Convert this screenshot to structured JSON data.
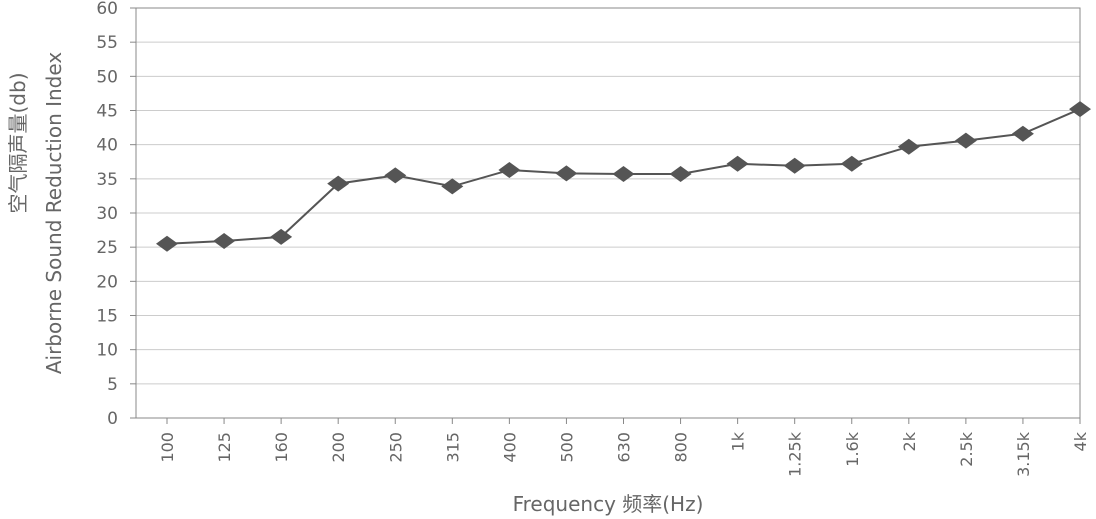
{
  "chart_data": {
    "type": "line",
    "categories": [
      "100",
      "125",
      "160",
      "200",
      "250",
      "315",
      "400",
      "500",
      "630",
      "800",
      "1k",
      "1.25k",
      "1.6k",
      "2k",
      "2.5k",
      "3.15k",
      "4k"
    ],
    "series": [
      {
        "values": [
          25.5,
          25.9,
          26.5,
          34.3,
          35.5,
          33.9,
          36.3,
          35.8,
          35.7,
          35.7,
          37.2,
          36.9,
          37.2,
          39.7,
          40.6,
          41.6,
          45.2
        ]
      }
    ],
    "ylim": [
      0,
      60
    ],
    "yticks": [
      0,
      5,
      10,
      15,
      20,
      25,
      30,
      35,
      40,
      45,
      50,
      55,
      60
    ],
    "xlabel": "Frequency 频率(Hz)",
    "ylabel_line1": "空气隔声量(db)",
    "ylabel_line2": "Airborne Sound Reduction Index",
    "grid": true,
    "marker": "diamond",
    "colors": {
      "line": "#555555",
      "marker": "#555555",
      "grid": "#cccccc",
      "axis": "#888888",
      "text": "#666666"
    }
  }
}
